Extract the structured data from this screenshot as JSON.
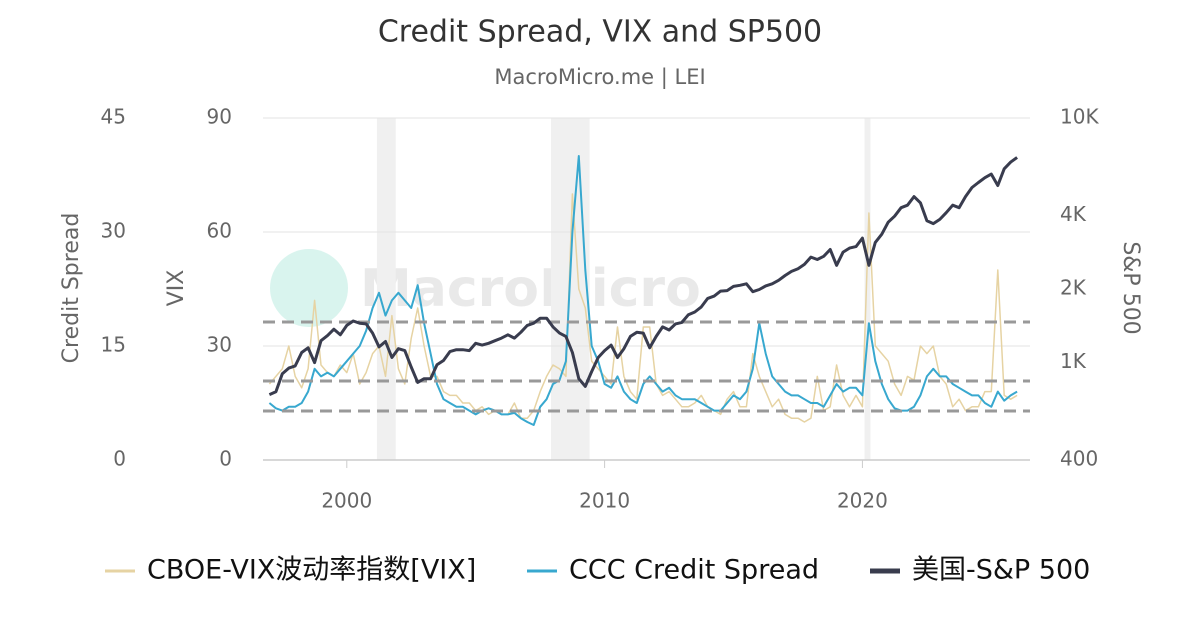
{
  "chart_data": {
    "type": "line",
    "title": "Credit Spread, VIX and SP500",
    "subtitle": "MacroMicro.me | LEI",
    "watermark": "MacroMicro",
    "y_label": "Credit Spread",
    "y2_label": "VIX",
    "y3_label": "S&P 500",
    "xlim": [
      1996.75,
      2026.5
    ],
    "xticks": [
      2000,
      2010,
      2020
    ],
    "ylim": [
      0,
      45
    ],
    "yticks": [
      0,
      15,
      30,
      45
    ],
    "y2lim": [
      0,
      90
    ],
    "y2ticks": [
      0,
      30,
      60,
      90
    ],
    "y3lim": [
      400,
      10000
    ],
    "y3_log": true,
    "y3ticks": [
      400,
      {
        "value": 1000,
        "label": "1K"
      },
      {
        "value": 2000,
        "label": "2K"
      },
      {
        "value": 4000,
        "label": "4K"
      },
      {
        "value": 10000,
        "label": "10K"
      }
    ],
    "grid": true,
    "legend": "bottom",
    "shaded_periods": [
      [
        2001.17,
        2001.9
      ],
      [
        2007.92,
        2009.42
      ],
      [
        2020.08,
        2020.31
      ]
    ],
    "reference_lines": {
      "axis": "y2",
      "values": [
        36.3,
        20.8,
        12.9
      ]
    },
    "x": [
      1997,
      1997.25,
      1997.5,
      1997.75,
      1998,
      1998.25,
      1998.5,
      1998.75,
      1999,
      1999.25,
      1999.5,
      1999.75,
      2000,
      2000.25,
      2000.5,
      2000.75,
      2001,
      2001.25,
      2001.5,
      2001.75,
      2002,
      2002.25,
      2002.5,
      2002.75,
      2003,
      2003.25,
      2003.5,
      2003.75,
      2004,
      2004.25,
      2004.5,
      2004.75,
      2005,
      2005.25,
      2005.5,
      2005.75,
      2006,
      2006.25,
      2006.5,
      2006.75,
      2007,
      2007.25,
      2007.5,
      2007.75,
      2008,
      2008.25,
      2008.5,
      2008.75,
      2009,
      2009.25,
      2009.5,
      2009.75,
      2010,
      2010.25,
      2010.5,
      2010.75,
      2011,
      2011.25,
      2011.5,
      2011.75,
      2012,
      2012.25,
      2012.5,
      2012.75,
      2013,
      2013.25,
      2013.5,
      2013.75,
      2014,
      2014.25,
      2014.5,
      2014.75,
      2015,
      2015.25,
      2015.5,
      2015.75,
      2016,
      2016.25,
      2016.5,
      2016.75,
      2017,
      2017.25,
      2017.5,
      2017.75,
      2018,
      2018.25,
      2018.5,
      2018.75,
      2019,
      2019.25,
      2019.5,
      2019.75,
      2020,
      2020.25,
      2020.5,
      2020.75,
      2021,
      2021.25,
      2021.5,
      2021.75,
      2022,
      2022.25,
      2022.5,
      2022.75,
      2023,
      2023.25,
      2023.5,
      2023.75,
      2024,
      2024.25,
      2024.5,
      2024.75,
      2025,
      2025.25,
      2025.5,
      2025.75,
      2026
    ],
    "series": [
      {
        "name": "CBOE-VIX波动率指数[VIX]",
        "color": "#e6d3a3",
        "axis": "y2",
        "values": [
          20,
          22,
          24,
          30,
          22,
          19,
          24,
          42,
          25,
          23,
          22,
          25,
          23,
          28,
          20,
          23,
          28,
          30,
          22,
          38,
          24,
          20,
          32,
          40,
          30,
          22,
          22,
          18,
          17,
          17,
          15,
          15,
          13,
          14,
          12,
          13,
          12,
          12,
          15,
          11,
          11,
          13,
          18,
          22,
          25,
          24,
          22,
          70,
          45,
          40,
          26,
          24,
          22,
          20,
          35,
          22,
          18,
          16,
          35,
          35,
          20,
          17,
          18,
          16,
          14,
          14,
          15,
          17,
          14,
          13,
          12,
          16,
          18,
          14,
          14,
          28,
          22,
          18,
          14,
          16,
          12,
          11,
          11,
          10,
          11,
          22,
          13,
          14,
          25,
          17,
          14,
          17,
          14,
          65,
          30,
          28,
          26,
          20,
          17,
          22,
          21,
          30,
          28,
          30,
          22,
          20,
          14,
          16,
          13,
          14,
          14,
          18,
          18,
          50,
          17,
          16,
          17
        ]
      },
      {
        "name": "CCC Credit Spread",
        "color": "#38a8cf",
        "axis": "y",
        "values": [
          7.5,
          6.8,
          6.5,
          7,
          7,
          7.5,
          9,
          12,
          11,
          11.5,
          11,
          12,
          13,
          14,
          15,
          17,
          20,
          22,
          19,
          21,
          22,
          21,
          20,
          23,
          18,
          14,
          10,
          8,
          7.5,
          7,
          7,
          6.5,
          6,
          6.5,
          6.8,
          6.5,
          6,
          6,
          6.2,
          5.5,
          5,
          4.6,
          7,
          8,
          10,
          10.5,
          13,
          30,
          40,
          25,
          15,
          13,
          10,
          9.5,
          11,
          9,
          8,
          7.5,
          10,
          11,
          10,
          9,
          9.5,
          8.5,
          8,
          8,
          8,
          7.5,
          7,
          6.5,
          6.5,
          7.5,
          8.5,
          8,
          9,
          12,
          18,
          14,
          11,
          10,
          9,
          8.5,
          8.5,
          8,
          7.5,
          7.5,
          7,
          8.5,
          10,
          9,
          9.5,
          9.5,
          8.5,
          18,
          13,
          10,
          8,
          6.8,
          6.5,
          6.5,
          7,
          8.5,
          11,
          12,
          11,
          11,
          10,
          9.5,
          9,
          8.5,
          8.5,
          7.5,
          7,
          9,
          7.8,
          8.5,
          9
        ]
      },
      {
        "name": "美国-S&P 500",
        "color": "#393c4e",
        "axis": "y3",
        "values": [
          740,
          760,
          900,
          950,
          970,
          1100,
          1150,
          1000,
          1230,
          1290,
          1370,
          1300,
          1420,
          1480,
          1450,
          1440,
          1320,
          1160,
          1220,
          1050,
          1140,
          1120,
          960,
          830,
          860,
          860,
          980,
          1020,
          1110,
          1130,
          1130,
          1120,
          1200,
          1180,
          1200,
          1230,
          1260,
          1300,
          1260,
          1330,
          1420,
          1450,
          1520,
          1520,
          1400,
          1320,
          1280,
          1100,
          860,
          800,
          920,
          1050,
          1120,
          1180,
          1050,
          1140,
          1280,
          1330,
          1320,
          1150,
          1280,
          1400,
          1360,
          1440,
          1460,
          1570,
          1610,
          1690,
          1830,
          1870,
          1960,
          1970,
          2050,
          2070,
          2100,
          1950,
          1990,
          2060,
          2100,
          2170,
          2270,
          2360,
          2420,
          2520,
          2700,
          2640,
          2720,
          2900,
          2500,
          2830,
          2940,
          2980,
          3230,
          2500,
          3100,
          3350,
          3750,
          3970,
          4300,
          4400,
          4770,
          4500,
          3800,
          3700,
          3850,
          4100,
          4400,
          4300,
          4770,
          5200,
          5450,
          5700,
          5900,
          5300,
          6200,
          6600,
          6900
        ]
      }
    ]
  }
}
